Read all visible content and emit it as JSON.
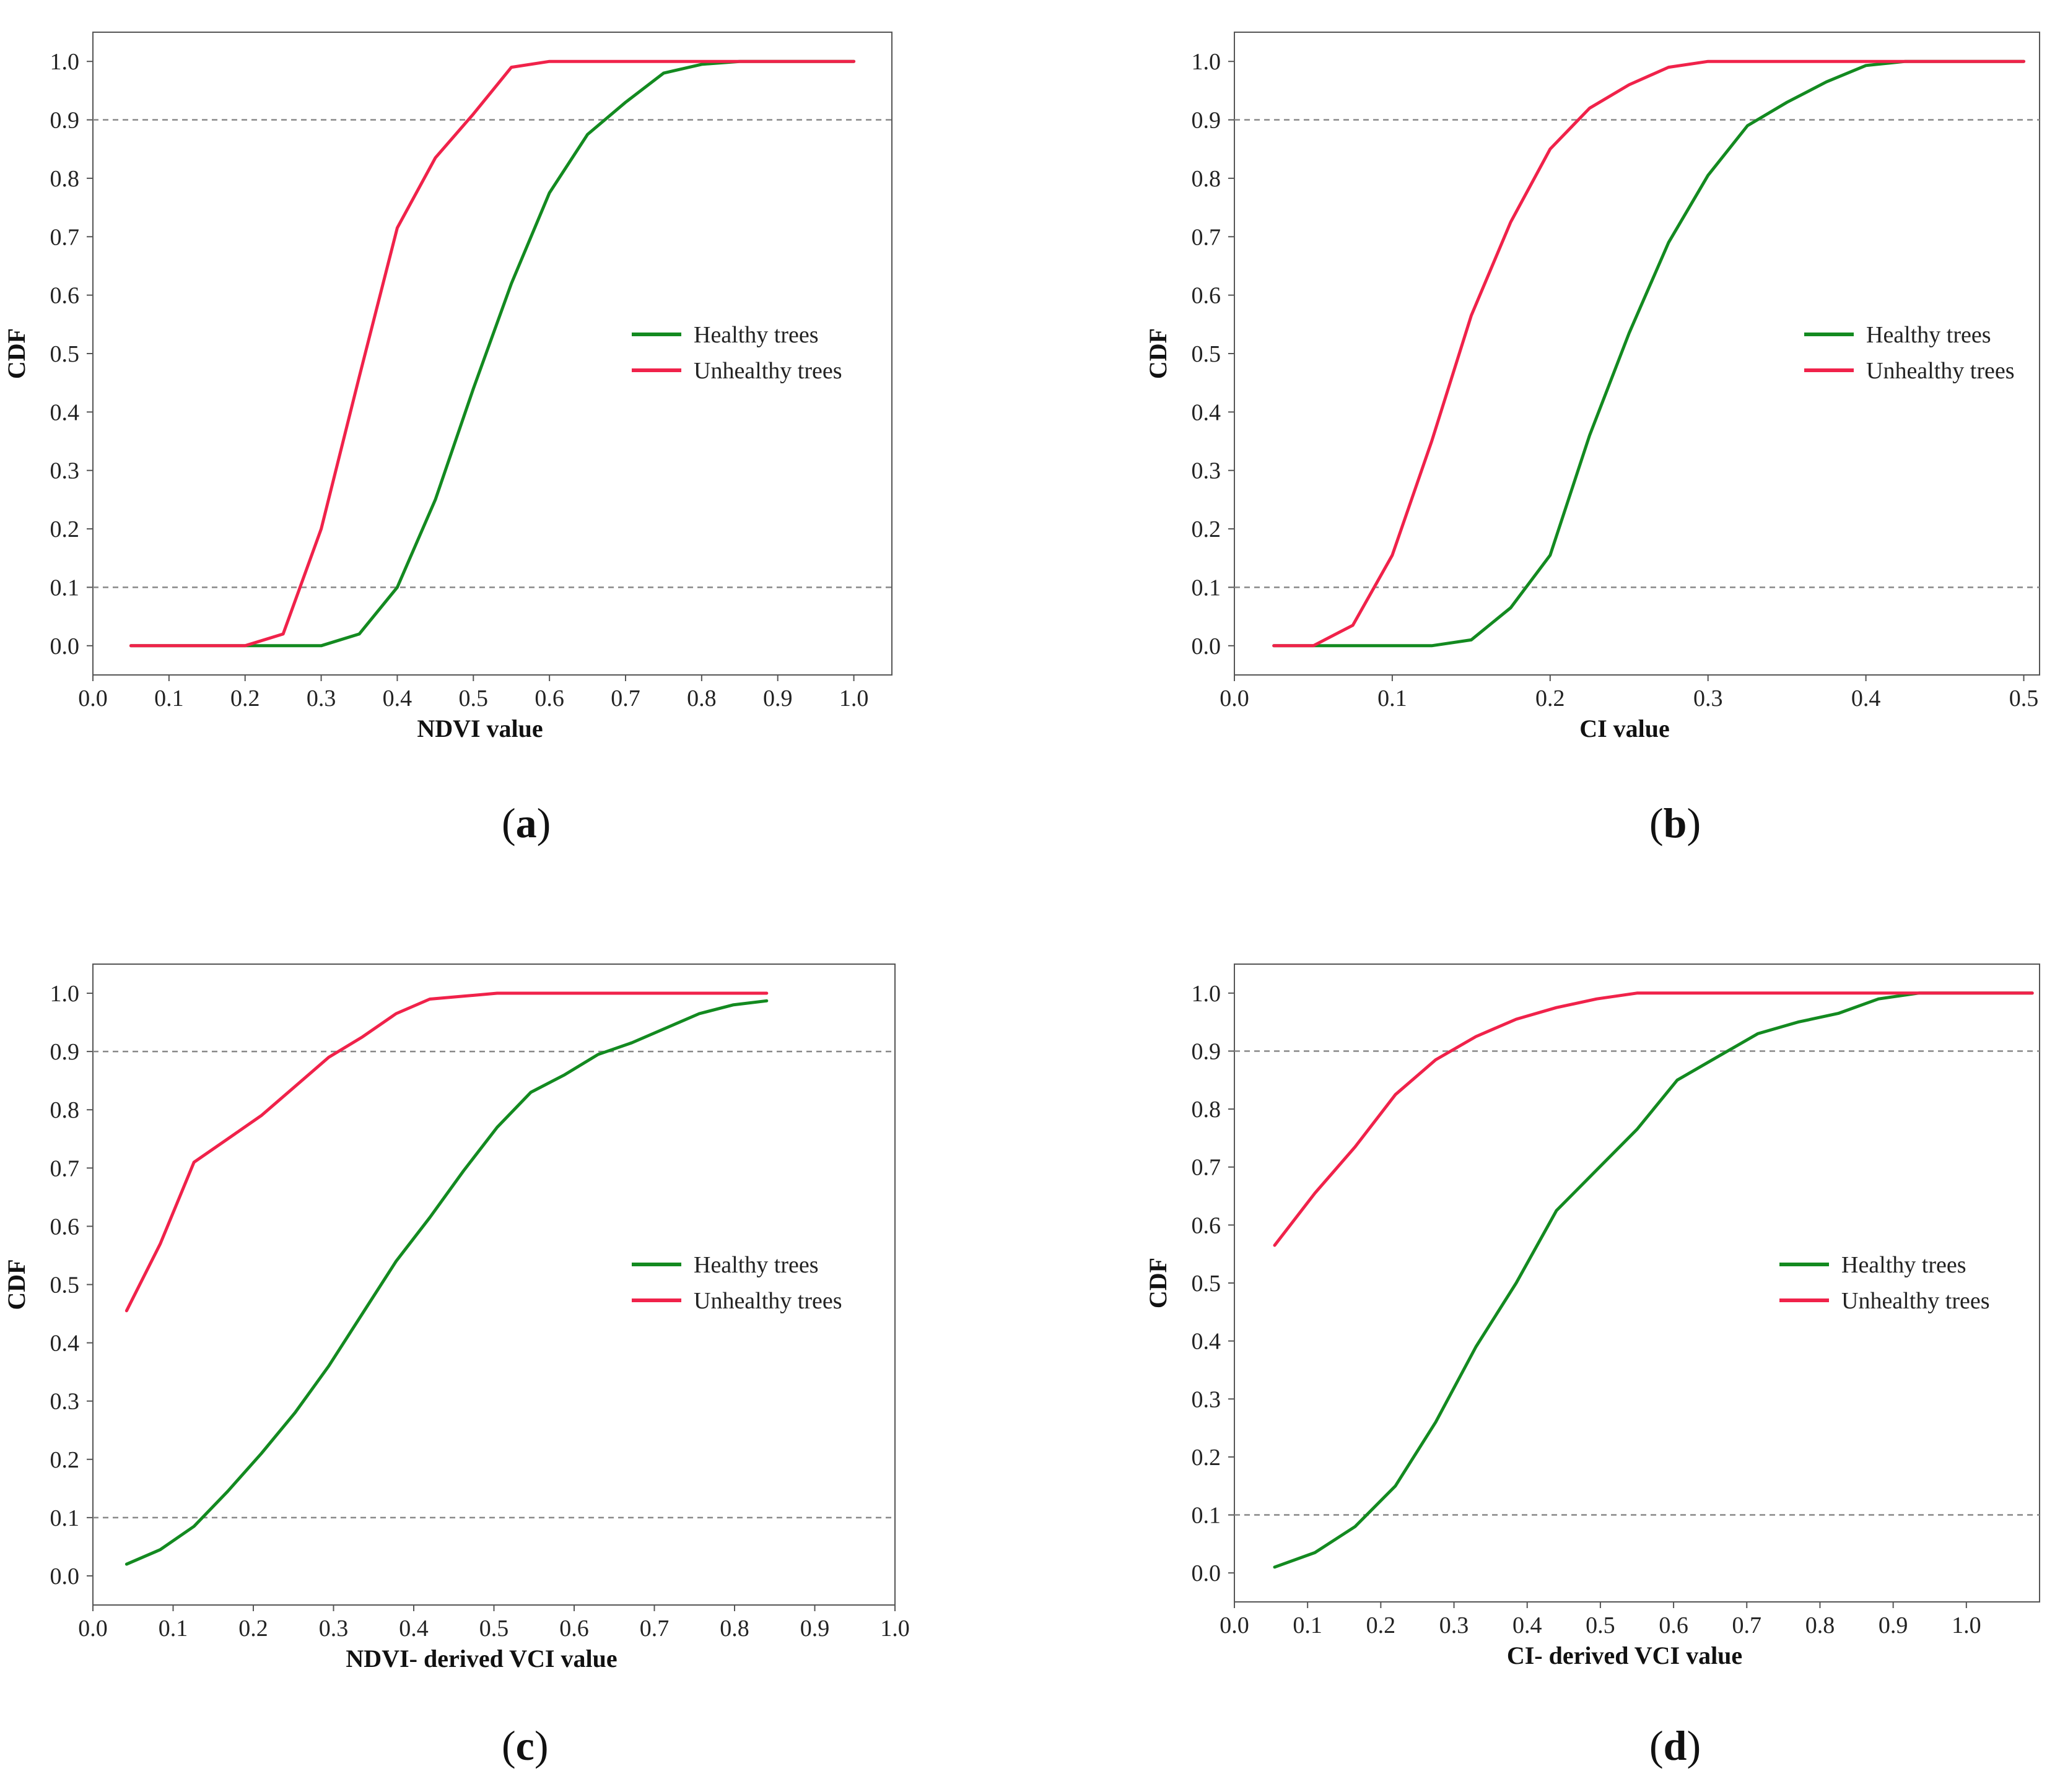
{
  "colors": {
    "healthy": "#138a20",
    "unhealthy": "#f0224a",
    "frame": "#555555",
    "refline": "#888888"
  },
  "legend": {
    "healthy_label": "Healthy trees",
    "unhealthy_label": "Unhealthy trees"
  },
  "captions": [
    "a",
    "b",
    "c",
    "d"
  ],
  "chart_data": [
    {
      "id": "a",
      "type": "line",
      "title": "",
      "xlabel": "NDVI value",
      "ylabel": "CDF",
      "xlim": [
        0.0,
        1.05
      ],
      "ylim": [
        -0.05,
        1.05
      ],
      "xticks": [
        "0.0",
        "0.1",
        "0.2",
        "0.3",
        "0.4",
        "0.5",
        "0.6",
        "0.7",
        "0.8",
        "0.9",
        "1.0"
      ],
      "xtick_values": [
        0.0,
        0.1,
        0.2,
        0.3,
        0.4,
        0.5,
        0.6,
        0.7,
        0.8,
        0.9,
        1.0
      ],
      "yticks": [
        "0.0",
        "0.1",
        "0.2",
        "0.3",
        "0.4",
        "0.5",
        "0.6",
        "0.7",
        "0.8",
        "0.9",
        "1.0"
      ],
      "ytick_values": [
        0.0,
        0.1,
        0.2,
        0.3,
        0.4,
        0.5,
        0.6,
        0.7,
        0.8,
        0.9,
        1.0
      ],
      "reference_lines": [
        0.1,
        0.9
      ],
      "legend_position": "center-right",
      "series": [
        {
          "name": "Healthy trees",
          "x": [
            0.05,
            0.1,
            0.15,
            0.2,
            0.25,
            0.3,
            0.35,
            0.4,
            0.45,
            0.5,
            0.55,
            0.6,
            0.65,
            0.7,
            0.75,
            0.8,
            0.85,
            0.9,
            0.95,
            1.0
          ],
          "y": [
            0.0,
            0.0,
            0.0,
            0.0,
            0.0,
            0.0,
            0.02,
            0.1,
            0.25,
            0.44,
            0.62,
            0.775,
            0.875,
            0.93,
            0.98,
            0.995,
            1.0,
            1.0,
            1.0,
            1.0
          ]
        },
        {
          "name": "Unhealthy trees",
          "x": [
            0.05,
            0.1,
            0.15,
            0.2,
            0.25,
            0.3,
            0.35,
            0.4,
            0.45,
            0.5,
            0.55,
            0.6,
            0.65,
            0.7,
            0.75,
            0.8,
            0.85,
            0.9,
            0.95,
            1.0
          ],
          "y": [
            0.0,
            0.0,
            0.0,
            0.0,
            0.02,
            0.2,
            0.46,
            0.715,
            0.835,
            0.91,
            0.99,
            1.0,
            1.0,
            1.0,
            1.0,
            1.0,
            1.0,
            1.0,
            1.0,
            1.0
          ]
        }
      ]
    },
    {
      "id": "b",
      "type": "line",
      "title": "",
      "xlabel": "CI value",
      "ylabel": "CDF",
      "xlim": [
        0.0,
        0.51
      ],
      "ylim": [
        -0.05,
        1.05
      ],
      "xticks": [
        "0.0",
        "0.1",
        "0.2",
        "0.3",
        "0.4",
        "0.5"
      ],
      "xtick_values": [
        0.0,
        0.1,
        0.2,
        0.3,
        0.4,
        0.5
      ],
      "yticks": [
        "0.0",
        "0.1",
        "0.2",
        "0.3",
        "0.4",
        "0.5",
        "0.6",
        "0.7",
        "0.8",
        "0.9",
        "1.0"
      ],
      "ytick_values": [
        0.0,
        0.1,
        0.2,
        0.3,
        0.4,
        0.5,
        0.6,
        0.7,
        0.8,
        0.9,
        1.0
      ],
      "reference_lines": [
        0.1,
        0.9
      ],
      "legend_position": "center-right",
      "series": [
        {
          "name": "Healthy trees",
          "x": [
            0.025,
            0.05,
            0.075,
            0.1,
            0.125,
            0.15,
            0.175,
            0.2,
            0.225,
            0.25,
            0.275,
            0.3,
            0.325,
            0.35,
            0.375,
            0.4,
            0.425,
            0.45,
            0.475,
            0.5
          ],
          "y": [
            0.0,
            0.0,
            0.0,
            0.0,
            0.0,
            0.01,
            0.065,
            0.155,
            0.36,
            0.535,
            0.69,
            0.805,
            0.89,
            0.93,
            0.965,
            0.993,
            1.0,
            1.0,
            1.0,
            1.0
          ]
        },
        {
          "name": "Unhealthy trees",
          "x": [
            0.025,
            0.05,
            0.075,
            0.1,
            0.125,
            0.15,
            0.175,
            0.2,
            0.225,
            0.25,
            0.275,
            0.3,
            0.325,
            0.35,
            0.375,
            0.4,
            0.425,
            0.45,
            0.475,
            0.5
          ],
          "y": [
            0.0,
            0.0,
            0.035,
            0.155,
            0.35,
            0.565,
            0.725,
            0.85,
            0.92,
            0.96,
            0.99,
            1.0,
            1.0,
            1.0,
            1.0,
            1.0,
            1.0,
            1.0,
            1.0,
            1.0
          ]
        }
      ]
    },
    {
      "id": "c",
      "type": "line",
      "title": "",
      "xlabel": "NDVI- derived VCI value",
      "ylabel": "CDF",
      "xlim": [
        0.0,
        1.0
      ],
      "ylim": [
        -0.05,
        1.05
      ],
      "xticks": [
        "0.0",
        "0.1",
        "0.2",
        "0.3",
        "0.4",
        "0.5",
        "0.6",
        "0.7",
        "0.8",
        "0.9",
        "1.0"
      ],
      "xtick_values": [
        0.0,
        0.1,
        0.2,
        0.3,
        0.4,
        0.5,
        0.6,
        0.7,
        0.8,
        0.9,
        1.0
      ],
      "yticks": [
        "0.0",
        "0.1",
        "0.2",
        "0.3",
        "0.4",
        "0.5",
        "0.6",
        "0.7",
        "0.8",
        "0.9",
        "1.0"
      ],
      "ytick_values": [
        0.0,
        0.1,
        0.2,
        0.3,
        0.4,
        0.5,
        0.6,
        0.7,
        0.8,
        0.9,
        1.0
      ],
      "reference_lines": [
        0.1,
        0.9
      ],
      "legend_position": "center-right",
      "series": [
        {
          "name": "Healthy trees",
          "x": [
            0.042,
            0.084,
            0.126,
            0.168,
            0.21,
            0.252,
            0.294,
            0.336,
            0.378,
            0.42,
            0.462,
            0.504,
            0.546,
            0.588,
            0.63,
            0.672,
            0.714,
            0.756,
            0.798,
            0.84
          ],
          "y": [
            0.02,
            0.045,
            0.085,
            0.145,
            0.21,
            0.28,
            0.36,
            0.45,
            0.54,
            0.615,
            0.695,
            0.77,
            0.83,
            0.86,
            0.895,
            0.915,
            0.94,
            0.965,
            0.98,
            0.987
          ]
        },
        {
          "name": "Unhealthy trees",
          "x": [
            0.042,
            0.084,
            0.126,
            0.168,
            0.21,
            0.252,
            0.294,
            0.336,
            0.378,
            0.42,
            0.462,
            0.504,
            0.546,
            0.588,
            0.63,
            0.672,
            0.714,
            0.756,
            0.798,
            0.84
          ],
          "y": [
            0.455,
            0.57,
            0.71,
            0.75,
            0.79,
            0.84,
            0.89,
            0.925,
            0.965,
            0.99,
            0.995,
            1.0,
            1.0,
            1.0,
            1.0,
            1.0,
            1.0,
            1.0,
            1.0,
            1.0
          ]
        }
      ]
    },
    {
      "id": "d",
      "type": "line",
      "title": "",
      "xlabel": "CI- derived VCI value",
      "ylabel": "CDF",
      "xlim": [
        0.0,
        1.1
      ],
      "ylim": [
        -0.05,
        1.05
      ],
      "xticks": [
        "0.0",
        "0.1",
        "0.2",
        "0.3",
        "0.4",
        "0.5",
        "0.6",
        "0.7",
        "0.8",
        "0.9",
        "1.0"
      ],
      "xtick_values": [
        0.0,
        0.1,
        0.2,
        0.3,
        0.4,
        0.5,
        0.6,
        0.7,
        0.8,
        0.9,
        1.0
      ],
      "yticks": [
        "0.0",
        "0.1",
        "0.2",
        "0.3",
        "0.4",
        "0.5",
        "0.6",
        "0.7",
        "0.8",
        "0.9",
        "1.0"
      ],
      "ytick_values": [
        0.0,
        0.1,
        0.2,
        0.3,
        0.4,
        0.5,
        0.6,
        0.7,
        0.8,
        0.9,
        1.0
      ],
      "reference_lines": [
        0.1,
        0.9
      ],
      "legend_position": "center-right",
      "series": [
        {
          "name": "Healthy trees",
          "x": [
            0.055,
            0.11,
            0.165,
            0.22,
            0.275,
            0.33,
            0.385,
            0.44,
            0.495,
            0.55,
            0.605,
            0.66,
            0.715,
            0.77,
            0.825,
            0.88,
            0.935,
            0.99,
            1.045,
            1.09
          ],
          "y": [
            0.01,
            0.035,
            0.08,
            0.15,
            0.26,
            0.39,
            0.5,
            0.625,
            0.695,
            0.765,
            0.85,
            0.89,
            0.93,
            0.95,
            0.965,
            0.99,
            1.0,
            1.0,
            1.0,
            1.0
          ]
        },
        {
          "name": "Unhealthy trees",
          "x": [
            0.055,
            0.11,
            0.165,
            0.22,
            0.275,
            0.33,
            0.385,
            0.44,
            0.495,
            0.55,
            0.605,
            0.66,
            0.715,
            0.77,
            0.825,
            0.88,
            0.935,
            0.99,
            1.045,
            1.09
          ],
          "y": [
            0.565,
            0.655,
            0.735,
            0.825,
            0.885,
            0.925,
            0.955,
            0.975,
            0.99,
            1.0,
            1.0,
            1.0,
            1.0,
            1.0,
            1.0,
            1.0,
            1.0,
            1.0,
            1.0,
            1.0
          ]
        }
      ]
    }
  ]
}
